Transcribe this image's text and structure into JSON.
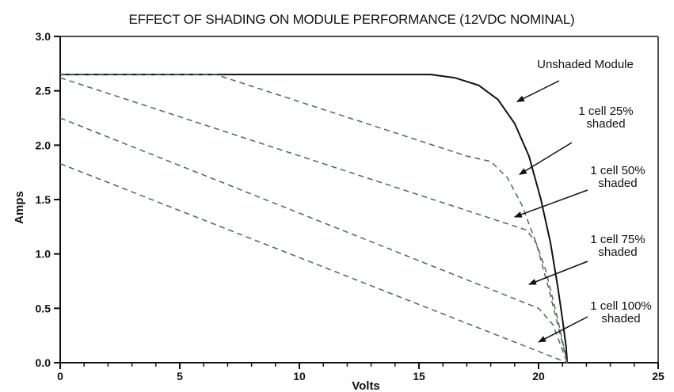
{
  "chart_data": {
    "type": "line",
    "title": "EFFECT OF SHADING ON MODULE PERFORMANCE (12VDC NOMINAL)",
    "xlabel": "Volts",
    "ylabel": "Amps",
    "xlim": [
      0,
      25
    ],
    "ylim": [
      0,
      3.0
    ],
    "xticks": [
      0,
      5,
      10,
      15,
      20,
      25
    ],
    "yticks": [
      0.0,
      0.5,
      1.0,
      1.5,
      2.0,
      2.5,
      3.0
    ],
    "xtick_labels": [
      "0",
      "5",
      "10",
      "15",
      "20",
      "25"
    ],
    "ytick_labels": [
      "0.0",
      "0.5",
      "1.0",
      "1.5",
      "2.0",
      "2.5",
      "3.0"
    ],
    "grid": false,
    "series": [
      {
        "name": "Unshaded Module",
        "style": "solid",
        "color": "#111111",
        "points": [
          [
            0,
            2.65
          ],
          [
            14,
            2.65
          ],
          [
            15.5,
            2.65
          ],
          [
            16.5,
            2.62
          ],
          [
            17.5,
            2.55
          ],
          [
            18.3,
            2.42
          ],
          [
            19.0,
            2.2
          ],
          [
            19.6,
            1.9
          ],
          [
            20.1,
            1.5
          ],
          [
            20.5,
            1.1
          ],
          [
            20.8,
            0.7
          ],
          [
            21.0,
            0.4
          ],
          [
            21.15,
            0.15
          ],
          [
            21.2,
            0.0
          ]
        ]
      },
      {
        "name": "1 cell 25% shaded",
        "style": "dashed",
        "color": "#4a6a55",
        "points": [
          [
            0,
            2.65
          ],
          [
            6.5,
            2.65
          ],
          [
            17.0,
            1.9
          ],
          [
            18.0,
            1.85
          ],
          [
            18.7,
            1.7
          ],
          [
            19.3,
            1.45
          ],
          [
            19.9,
            1.1
          ],
          [
            20.4,
            0.7
          ],
          [
            20.8,
            0.35
          ],
          [
            21.2,
            0.0
          ]
        ]
      },
      {
        "name": "1 cell 50% shaded",
        "style": "dashed",
        "color": "#4a6a55",
        "points": [
          [
            0,
            2.62
          ],
          [
            19.5,
            1.22
          ],
          [
            19.9,
            1.1
          ],
          [
            20.3,
            0.85
          ],
          [
            20.8,
            0.4
          ],
          [
            21.2,
            0.0
          ]
        ]
      },
      {
        "name": "1 cell 75% shaded",
        "style": "dashed",
        "color": "#4a6a55",
        "points": [
          [
            0,
            2.25
          ],
          [
            20.0,
            0.5
          ],
          [
            20.6,
            0.35
          ],
          [
            21.2,
            0.0
          ]
        ]
      },
      {
        "name": "1 cell 100% shaded",
        "style": "dashed",
        "color": "#4a6a55",
        "points": [
          [
            0,
            1.83
          ],
          [
            21.2,
            0.0
          ]
        ]
      }
    ],
    "annotations": [
      {
        "lines": [
          "Unshaded Module"
        ],
        "arrow_to": [
          19.1,
          2.4
        ]
      },
      {
        "lines": [
          "1 cell 25%",
          "shaded"
        ],
        "arrow_to": [
          19.2,
          1.73
        ]
      },
      {
        "lines": [
          "1 cell 50%",
          "shaded"
        ],
        "arrow_to": [
          19.0,
          1.34
        ]
      },
      {
        "lines": [
          "1 cell 75%",
          "shaded"
        ],
        "arrow_to": [
          19.6,
          0.72
        ]
      },
      {
        "lines": [
          "1 cell 100%",
          "shaded"
        ],
        "arrow_to": [
          20.0,
          0.19
        ]
      }
    ]
  }
}
